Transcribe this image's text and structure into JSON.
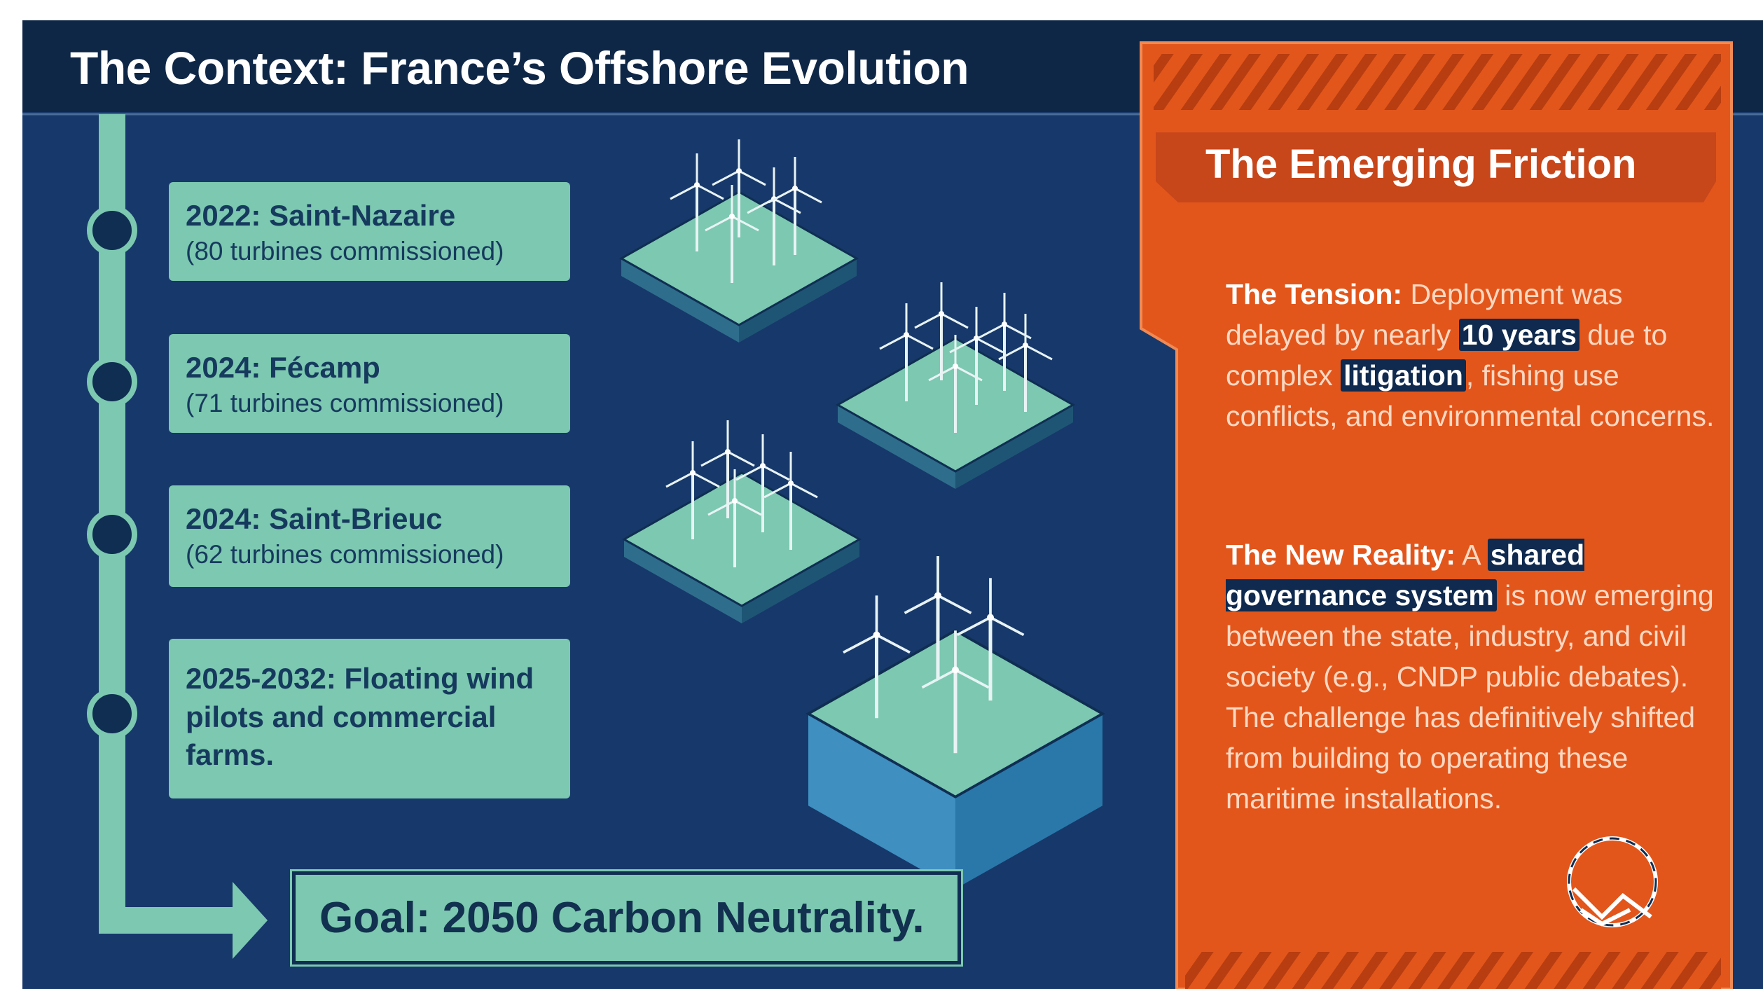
{
  "header": {
    "title": "The Context: France’s Offshore Evolution"
  },
  "timeline": {
    "items": [
      {
        "title": "2022: Saint-Nazaire",
        "detail": "(80 turbines commissioned)"
      },
      {
        "title": "2024: Fécamp",
        "detail": "(71 turbines commissioned)"
      },
      {
        "title": "2024: Saint-Brieuc",
        "detail": "(62 turbines commissioned)"
      },
      {
        "title": "2025-2032: Floating wind pilots and commercial farms."
      }
    ],
    "goal": "Goal: 2050 Carbon Neutrality."
  },
  "friction": {
    "title": "The Emerging Friction",
    "paragraphs": [
      {
        "label": "The Tension:",
        "segments": [
          {
            "text": " Deployment was delayed by nearly ",
            "highlight": false
          },
          {
            "text": "10 years",
            "highlight": true
          },
          {
            "text": " due to complex ",
            "highlight": false
          },
          {
            "text": "litigation",
            "highlight": true
          },
          {
            "text": ", fishing use conflicts, and environmental concerns.",
            "highlight": false
          }
        ]
      },
      {
        "label": "The New Reality:",
        "segments": [
          {
            "text": " A ",
            "highlight": false
          },
          {
            "text": "shared governance system",
            "highlight": true
          },
          {
            "text": " is now emerging between the state, industry, and civil society (e.g., CNDP public debates). The challenge has definitively shifted from building to operating these maritime installations.",
            "highlight": false
          }
        ]
      }
    ]
  }
}
